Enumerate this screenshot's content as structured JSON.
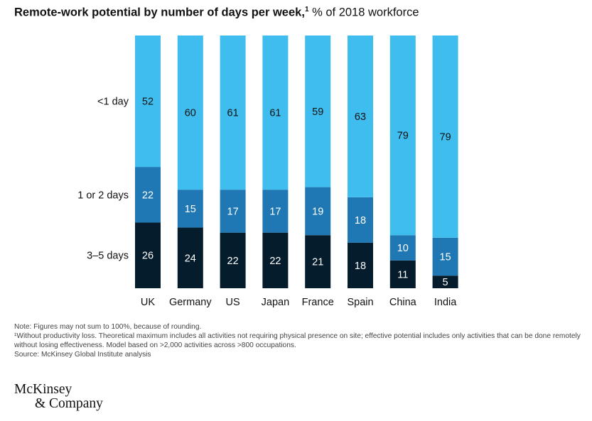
{
  "title": {
    "bold": "Remote-work potential by number of days per week,",
    "footnote_mark": "1",
    "subtitle": "% of 2018 workforce"
  },
  "chart_data": {
    "type": "bar",
    "stacked": true,
    "orientation": "vertical",
    "categories": [
      "UK",
      "Germany",
      "US",
      "Japan",
      "France",
      "Spain",
      "China",
      "India"
    ],
    "series": [
      {
        "name": "3–5 days",
        "color": "#051c2c",
        "values": [
          26,
          24,
          22,
          22,
          21,
          18,
          11,
          5
        ]
      },
      {
        "name": "1 or 2 days",
        "color": "#1f78b4",
        "values": [
          22,
          15,
          17,
          17,
          19,
          18,
          10,
          15
        ]
      },
      {
        "name": "<1 day",
        "color": "#3fbdef",
        "values": [
          52,
          60,
          61,
          61,
          59,
          63,
          79,
          79
        ]
      }
    ],
    "ylim": [
      0,
      100
    ],
    "legend": "left",
    "grid": false
  },
  "notes": {
    "note": "Note: Figures may not sum to 100%, because of rounding.",
    "footnote1": "¹Without productivity loss. Theoretical maximum includes all activities not requiring physical presence on site; effective potential includes only activities that can be done remotely without losing effectiveness. Model based on >2,000 activities across >800 occupations.",
    "source": "Source: McKinsey Global Institute analysis"
  },
  "logo": {
    "line1": "McKinsey",
    "line2": "& Company"
  }
}
